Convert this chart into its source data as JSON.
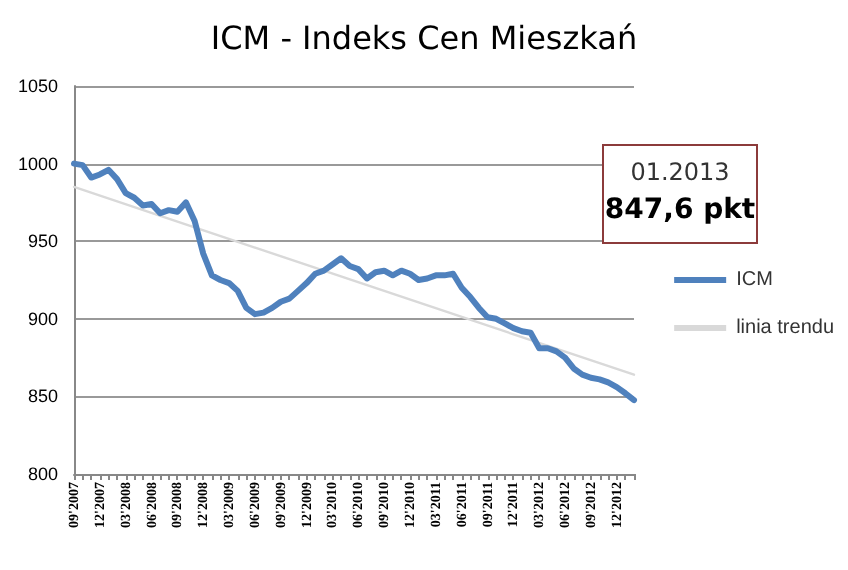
{
  "chart_data": {
    "type": "line",
    "title": "ICM - Indeks Cen Mieszkań",
    "categories": [
      "09'2007",
      null,
      null,
      "12'2007",
      null,
      null,
      "03'2008",
      null,
      null,
      "06'2008",
      null,
      null,
      "09'2008",
      null,
      null,
      "12'2008",
      null,
      null,
      "03'2009",
      null,
      null,
      "06'2009",
      null,
      null,
      "09'2009",
      null,
      null,
      "12'2009",
      null,
      null,
      "03'2010",
      null,
      null,
      "06'2010",
      null,
      null,
      "09'2010",
      null,
      null,
      "12'2010",
      null,
      null,
      "03'2011",
      null,
      null,
      "06'2011",
      null,
      null,
      "09'2011",
      null,
      null,
      "12'2011",
      null,
      null,
      "03'2012",
      null,
      null,
      "06'2012",
      null,
      null,
      "09'2012",
      null,
      null,
      "12'2012",
      null,
      null
    ],
    "series": [
      {
        "name": "ICM",
        "color": "#4f81bd",
        "values": [
          1000,
          999,
          991,
          993,
          996,
          990,
          981,
          978,
          973,
          974,
          968,
          970,
          969,
          975,
          963,
          942,
          928,
          925,
          923,
          918,
          907,
          903,
          904,
          907,
          911,
          913,
          918,
          923,
          929,
          931,
          935,
          939,
          934,
          932,
          926,
          930,
          931,
          928,
          931,
          929,
          925,
          926,
          928,
          928,
          929,
          920,
          914,
          907,
          901,
          900,
          897,
          894,
          892,
          891,
          881,
          881,
          879,
          875,
          868,
          864,
          862,
          861,
          859,
          856,
          852,
          847.6
        ]
      },
      {
        "name": "linia trendu",
        "color": "#d9d9d9",
        "values": [
          985,
          null,
          null,
          null,
          null,
          null,
          null,
          null,
          null,
          null,
          null,
          null,
          null,
          null,
          null,
          null,
          null,
          null,
          null,
          null,
          null,
          null,
          null,
          null,
          null,
          null,
          null,
          null,
          null,
          null,
          null,
          null,
          null,
          null,
          null,
          null,
          null,
          null,
          null,
          null,
          null,
          null,
          null,
          null,
          null,
          null,
          null,
          null,
          null,
          null,
          null,
          null,
          null,
          null,
          null,
          null,
          null,
          null,
          null,
          null,
          null,
          null,
          null,
          null,
          null,
          864
        ]
      }
    ],
    "ylim": [
      800,
      1050
    ],
    "yticks": [
      800,
      850,
      900,
      950,
      1000,
      1050
    ],
    "grid": "y",
    "legend": "right",
    "marker": "none",
    "line_style": "solid",
    "annotations": [
      "01.2013",
      "847,6 pkt"
    ]
  }
}
